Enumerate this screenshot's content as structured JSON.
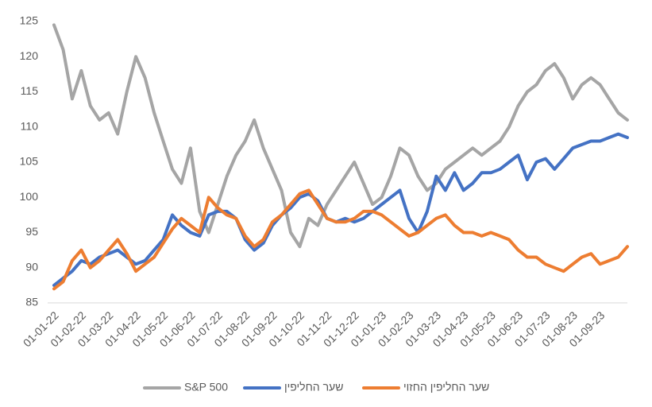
{
  "chart_data": {
    "type": "line",
    "categories": [
      "01-01-22",
      null,
      null,
      "01-02-22",
      null,
      null,
      "01-03-22",
      null,
      null,
      "01-04-22",
      null,
      null,
      "01-05-22",
      null,
      null,
      "01-06-22",
      null,
      null,
      "01-07-22",
      null,
      null,
      "01-08-22",
      null,
      null,
      "01-09-22",
      null,
      null,
      "01-10-22",
      null,
      null,
      "01-11-22",
      null,
      null,
      "01-12-22",
      null,
      null,
      "01-01-23",
      null,
      null,
      "01-02-23",
      null,
      null,
      "01-03-23",
      null,
      null,
      "01-04-23",
      null,
      null,
      "01-05-23",
      null,
      null,
      "01-06-23",
      null,
      null,
      "01-07-23",
      null,
      null,
      "01-08-23",
      null,
      null,
      "01-09-23",
      null,
      null,
      null
    ],
    "series": [
      {
        "name": "S&P 500",
        "color": "#a5a5a5",
        "values": [
          124.5,
          121,
          114,
          118,
          113,
          111,
          112,
          109,
          115,
          120,
          117,
          112,
          108,
          104,
          102,
          107,
          98,
          95,
          99,
          103,
          106,
          108,
          111,
          107,
          104,
          101,
          95,
          93,
          97,
          96,
          99,
          101,
          103,
          105,
          102,
          99,
          100,
          103,
          107,
          106,
          103,
          101,
          102,
          104,
          105,
          106,
          107,
          106,
          107,
          108,
          110,
          113,
          115,
          116,
          118,
          119,
          117,
          114,
          116,
          117,
          116,
          114,
          112,
          111
        ]
      },
      {
        "name": "שער החליפין",
        "color": "#4472c4",
        "values": [
          87.5,
          88.5,
          89.5,
          91,
          90.5,
          91.5,
          92,
          92.5,
          91.5,
          90.5,
          91,
          92.5,
          94,
          97.5,
          96,
          95,
          94.5,
          97.5,
          98,
          98,
          97,
          94,
          92.5,
          93.5,
          96,
          97.5,
          98.5,
          100,
          100.5,
          99.5,
          97,
          96.5,
          97,
          96.5,
          97,
          98,
          99,
          100,
          101,
          97,
          95,
          98,
          103,
          101,
          103.5,
          101,
          102,
          103.5,
          103.5,
          104,
          105,
          106,
          102.5,
          105,
          105.5,
          104,
          105.5,
          107,
          107.5,
          108,
          108,
          108.5,
          109,
          108.5
        ]
      },
      {
        "name": "שער החליפין החזוי",
        "color": "#ed7d31",
        "values": [
          87,
          88,
          91,
          92.5,
          90,
          91,
          92.5,
          94,
          92,
          89.5,
          90.5,
          91.5,
          93.5,
          95.5,
          97,
          96,
          95,
          100,
          98.5,
          97.5,
          97,
          94.5,
          93,
          94,
          96.5,
          97.5,
          99,
          100.5,
          101,
          99,
          97,
          96.5,
          96.5,
          97,
          98,
          98,
          97.5,
          96.5,
          95.5,
          94.5,
          95,
          96,
          97,
          97.5,
          96,
          95,
          95,
          94.5,
          95,
          94.5,
          94,
          92.5,
          91.5,
          91.5,
          90.5,
          90,
          89.5,
          90.5,
          91.5,
          92,
          90.5,
          91,
          91.5,
          93
        ]
      }
    ],
    "ylim": [
      85,
      125
    ],
    "yticks": [
      85,
      90,
      95,
      100,
      105,
      110,
      115,
      120,
      125
    ],
    "grid": false,
    "legend": "bottom"
  }
}
